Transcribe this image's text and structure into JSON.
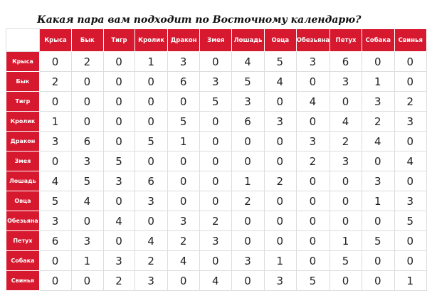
{
  "title": "Какая пара вам подходит по Восточному календарю?",
  "table": {
    "columns": [
      "Крыса",
      "Бык",
      "Тигр",
      "Кролик",
      "Дракон",
      "Змея",
      "Лошадь",
      "Овца",
      "Обезьяна",
      "Петух",
      "Собака",
      "Свинья"
    ],
    "row_labels": [
      "Крыса",
      "Бык",
      "Тигр",
      "Кролик",
      "Дракон",
      "Змея",
      "Лошадь",
      "Овца",
      "Обезьяна",
      "Петух",
      "Собака",
      "Свинья"
    ],
    "rows": [
      [
        0,
        2,
        0,
        1,
        3,
        0,
        4,
        5,
        3,
        6,
        0,
        0
      ],
      [
        2,
        0,
        0,
        0,
        6,
        3,
        5,
        4,
        0,
        3,
        1,
        0
      ],
      [
        0,
        0,
        0,
        0,
        0,
        5,
        3,
        0,
        4,
        0,
        3,
        2
      ],
      [
        1,
        0,
        0,
        0,
        5,
        0,
        6,
        3,
        0,
        4,
        2,
        3
      ],
      [
        3,
        6,
        0,
        5,
        1,
        0,
        0,
        0,
        3,
        2,
        4,
        0
      ],
      [
        0,
        3,
        5,
        0,
        0,
        0,
        0,
        0,
        2,
        3,
        0,
        4
      ],
      [
        4,
        5,
        3,
        6,
        0,
        0,
        1,
        2,
        0,
        0,
        3,
        0
      ],
      [
        5,
        4,
        0,
        3,
        0,
        0,
        2,
        0,
        0,
        0,
        1,
        3
      ],
      [
        3,
        0,
        4,
        0,
        3,
        2,
        0,
        0,
        0,
        0,
        0,
        5
      ],
      [
        6,
        3,
        0,
        4,
        2,
        3,
        0,
        0,
        0,
        1,
        5,
        0
      ],
      [
        0,
        1,
        3,
        2,
        4,
        0,
        3,
        1,
        0,
        5,
        0,
        0
      ],
      [
        0,
        0,
        2,
        3,
        0,
        4,
        0,
        3,
        5,
        0,
        0,
        1
      ]
    ]
  }
}
